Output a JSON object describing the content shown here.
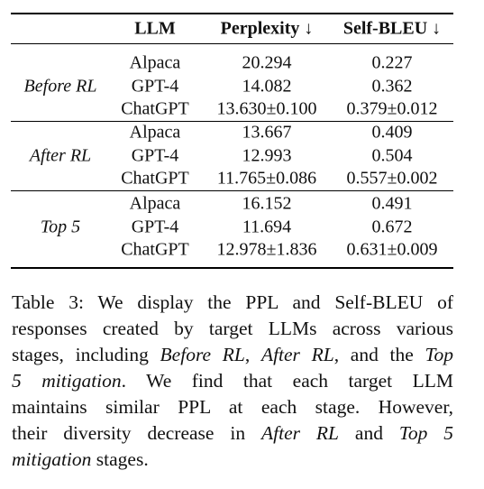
{
  "table": {
    "header": [
      "LLM",
      "Perplexity ↓",
      "Self-BLEU ↓"
    ],
    "groups": [
      {
        "label": "Before RL",
        "rows": [
          [
            "Alpaca",
            "20.294",
            "0.227"
          ],
          [
            "GPT-4",
            "14.082",
            "0.362"
          ],
          [
            "ChatGPT",
            "13.630±0.100",
            "0.379±0.012"
          ]
        ]
      },
      {
        "label": "After RL",
        "rows": [
          [
            "Alpaca",
            "13.667",
            "0.409"
          ],
          [
            "GPT-4",
            "12.993",
            "0.504"
          ],
          [
            "ChatGPT",
            "11.765±0.086",
            "0.557±0.002"
          ]
        ]
      },
      {
        "label": "Top 5",
        "rows": [
          [
            "Alpaca",
            "16.152",
            "0.491"
          ],
          [
            "GPT-4",
            "11.694",
            "0.672"
          ],
          [
            "ChatGPT",
            "12.978±1.836",
            "0.631±0.009"
          ]
        ]
      }
    ]
  },
  "caption": {
    "lines": [
      [
        {
          "text": "Table 3: We display the PPL and Self-BLEU of",
          "italic": false
        }
      ],
      [
        {
          "text": "responses created by target LLMs across various",
          "italic": false
        }
      ],
      [
        {
          "text": "stages, including ",
          "italic": false
        },
        {
          "text": "Before RL",
          "italic": true
        },
        {
          "text": ", ",
          "italic": false
        },
        {
          "text": "After RL",
          "italic": true
        },
        {
          "text": ", and the ",
          "italic": false
        },
        {
          "text": "Top",
          "italic": true
        }
      ],
      [
        {
          "text": "5 mitigation",
          "italic": true
        },
        {
          "text": ". We find that each target LLM",
          "italic": false
        }
      ],
      [
        {
          "text": "maintains similar PPL at each stage. However,",
          "italic": false
        }
      ],
      [
        {
          "text": "their diversity decrease in ",
          "italic": false
        },
        {
          "text": "After RL",
          "italic": true
        },
        {
          "text": " and ",
          "italic": false
        },
        {
          "text": "Top 5",
          "italic": true
        }
      ],
      [
        {
          "text": "mitigation",
          "italic": true
        },
        {
          "text": " stages.",
          "italic": false
        }
      ]
    ]
  }
}
